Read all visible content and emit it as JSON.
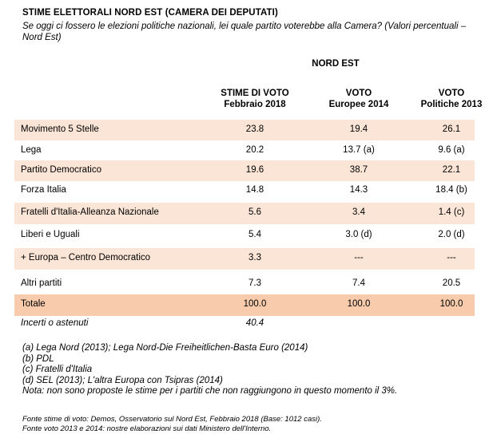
{
  "title": "STIME ELETTORALI NORD EST (CAMERA DEI DEPUTATI)",
  "subtitle": "Se oggi ci fossero le elezioni politiche nazionali, lei quale partito voterebbe alla Camera? (Valori percentuali – Nord Est)",
  "region": "NORD EST",
  "columns": [
    {
      "line1": "STIME DI VOTO",
      "line2": "Febbraio 2018"
    },
    {
      "line1": "VOTO",
      "line2": "Europee 2014"
    },
    {
      "line1": "VOTO",
      "line2": "Politiche 2013"
    }
  ],
  "rows": [
    {
      "party": "Movimento 5 Stelle",
      "v1": "23.8",
      "v2": "19.4",
      "v3": "26.1"
    },
    {
      "party": "Lega",
      "v1": "20.2",
      "v2": "13.7 (a)",
      "v3": "9.6 (a)"
    },
    {
      "party": "Partito Democratico",
      "v1": "19.6",
      "v2": "38.7",
      "v3": "22.1"
    },
    {
      "party": "Forza Italia",
      "v1": "14.8",
      "v2": "14.3",
      "v3": "18.4 (b)"
    },
    {
      "party": "Fratelli d'Italia-Alleanza  Nazionale",
      "v1": "5.6",
      "v2": "3.4",
      "v3": "1.4 (c)"
    },
    {
      "party": "Liberi e Uguali",
      "v1": "5.4",
      "v2": "3.0 (d)",
      "v3": "2.0 (d)"
    },
    {
      "party": "+ Europa – Centro Democratico",
      "v1": "3.3",
      "v2": "---",
      "v3": "---"
    },
    {
      "party": "Altri partiti",
      "v1": "7.3",
      "v2": "7.4",
      "v3": "20.5"
    }
  ],
  "total": {
    "label": "Totale",
    "v1": "100.0",
    "v2": "100.0",
    "v3": "100.0"
  },
  "undecided": {
    "label": "Incerti o astenuti",
    "value": "40.4"
  },
  "notes": [
    "(a) Lega Nord (2013);  Lega Nord-Die Freiheitlichen-Basta  Euro (2014)",
    "(b) PDL",
    "(c) Fratelli d'Italia",
    "(d) SEL (2013);  L'altra Europa con Tsipras (2014)",
    "Nota:  non sono proposte  le stime per i partiti che non raggiungono  in questo momento il 3%."
  ],
  "sources": [
    "Fonte stime di voto: Demos, Osservatorio sul Nord Est, Febbraio 2018 (Base: 1012 casi).",
    "Fonte voto 2013 e 2014: nostre elaborazioni sui dati Ministero dell'Interno."
  ],
  "colors": {
    "row_shade": "#fbe5d6",
    "total_shade": "#f8cbad"
  }
}
